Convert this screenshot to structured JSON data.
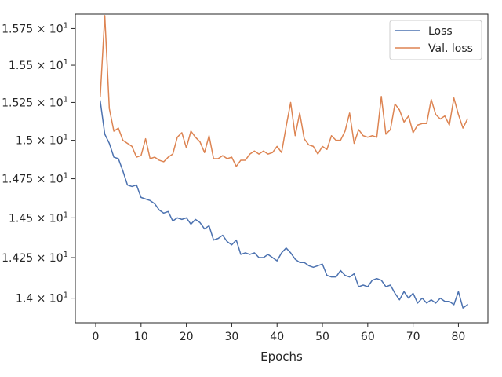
{
  "chart_data": {
    "type": "line",
    "title": "",
    "xlabel": "Epochs",
    "ylabel": "",
    "xlim": [
      -4.5,
      86.5
    ],
    "ylim": [
      13.85,
      15.85
    ],
    "yscale": "log",
    "grid": false,
    "legend_position": "top-right",
    "x_ticks": [
      0,
      10,
      20,
      30,
      40,
      50,
      60,
      70,
      80
    ],
    "x_tick_labels": [
      "0",
      "10",
      "20",
      "30",
      "40",
      "50",
      "60",
      "70",
      "80"
    ],
    "y_ticks": [
      14.0,
      14.25,
      14.5,
      14.75,
      15.0,
      15.25,
      15.5,
      15.75
    ],
    "y_tick_labels": [
      {
        "mantissa": "1.4",
        "base": "10",
        "exp": "1"
      },
      {
        "mantissa": "1.425",
        "base": "10",
        "exp": "1"
      },
      {
        "mantissa": "1.45",
        "base": "10",
        "exp": "1"
      },
      {
        "mantissa": "1.475",
        "base": "10",
        "exp": "1"
      },
      {
        "mantissa": "1.5",
        "base": "10",
        "exp": "1"
      },
      {
        "mantissa": "1.525",
        "base": "10",
        "exp": "1"
      },
      {
        "mantissa": "1.55",
        "base": "10",
        "exp": "1"
      },
      {
        "mantissa": "1.575",
        "base": "10",
        "exp": "1"
      }
    ],
    "series": [
      {
        "name": "Loss",
        "color": "#4c72b0",
        "x": [
          1,
          2,
          3,
          4,
          5,
          6,
          7,
          8,
          9,
          10,
          11,
          12,
          13,
          14,
          15,
          16,
          17,
          18,
          19,
          20,
          21,
          22,
          23,
          24,
          25,
          26,
          27,
          28,
          29,
          30,
          31,
          32,
          33,
          34,
          35,
          36,
          37,
          38,
          39,
          40,
          41,
          42,
          43,
          44,
          45,
          46,
          47,
          48,
          49,
          50,
          51,
          52,
          53,
          54,
          55,
          56,
          57,
          58,
          59,
          60,
          61,
          62,
          63,
          64,
          65,
          66,
          67,
          68,
          69,
          70,
          71,
          72,
          73,
          74,
          75,
          76,
          77,
          78,
          79,
          80,
          81,
          82
        ],
        "y": [
          15.26,
          15.04,
          14.98,
          14.89,
          14.88,
          14.8,
          14.71,
          14.7,
          14.71,
          14.63,
          14.62,
          14.61,
          14.59,
          14.55,
          14.53,
          14.54,
          14.48,
          14.5,
          14.49,
          14.5,
          14.46,
          14.49,
          14.47,
          14.43,
          14.45,
          14.36,
          14.37,
          14.39,
          14.35,
          14.33,
          14.36,
          14.27,
          14.28,
          14.27,
          14.28,
          14.25,
          14.25,
          14.27,
          14.25,
          14.23,
          14.28,
          14.31,
          14.28,
          14.24,
          14.22,
          14.22,
          14.2,
          14.19,
          14.2,
          14.21,
          14.14,
          14.13,
          14.13,
          14.17,
          14.14,
          14.13,
          14.15,
          14.07,
          14.08,
          14.07,
          14.11,
          14.12,
          14.11,
          14.07,
          14.08,
          14.03,
          13.99,
          14.04,
          14.0,
          14.03,
          13.97,
          14.0,
          13.97,
          13.99,
          13.97,
          14.0,
          13.98,
          13.98,
          13.96,
          14.04,
          13.94,
          13.96
        ]
      },
      {
        "name": "Val. loss",
        "color": "#dd8452",
        "x": [
          1,
          2,
          3,
          4,
          5,
          6,
          7,
          8,
          9,
          10,
          11,
          12,
          13,
          14,
          15,
          16,
          17,
          18,
          19,
          20,
          21,
          22,
          23,
          24,
          25,
          26,
          27,
          28,
          29,
          30,
          31,
          32,
          33,
          34,
          35,
          36,
          37,
          38,
          39,
          40,
          41,
          42,
          43,
          44,
          45,
          46,
          47,
          48,
          49,
          50,
          51,
          52,
          53,
          54,
          55,
          56,
          57,
          58,
          59,
          60,
          61,
          62,
          63,
          64,
          65,
          66,
          67,
          68,
          69,
          70,
          71,
          72,
          73,
          74,
          75,
          76,
          77,
          78,
          79,
          80,
          81,
          82
        ],
        "y": [
          15.29,
          15.84,
          15.21,
          15.06,
          15.08,
          15.0,
          14.98,
          14.96,
          14.89,
          14.9,
          15.01,
          14.88,
          14.89,
          14.87,
          14.86,
          14.89,
          14.91,
          15.02,
          15.05,
          14.95,
          15.06,
          15.02,
          14.99,
          14.92,
          15.03,
          14.88,
          14.88,
          14.9,
          14.88,
          14.89,
          14.83,
          14.87,
          14.87,
          14.91,
          14.93,
          14.91,
          14.93,
          14.91,
          14.92,
          14.96,
          14.92,
          15.09,
          15.25,
          15.03,
          15.18,
          15.01,
          14.97,
          14.96,
          14.91,
          14.96,
          14.94,
          15.03,
          15.0,
          15.0,
          15.06,
          15.18,
          14.98,
          15.07,
          15.03,
          15.02,
          15.03,
          15.02,
          15.29,
          15.04,
          15.07,
          15.24,
          15.2,
          15.12,
          15.16,
          15.05,
          15.1,
          15.11,
          15.11,
          15.27,
          15.17,
          15.14,
          15.16,
          15.1,
          15.28,
          15.17,
          15.08,
          15.14
        ]
      }
    ]
  }
}
